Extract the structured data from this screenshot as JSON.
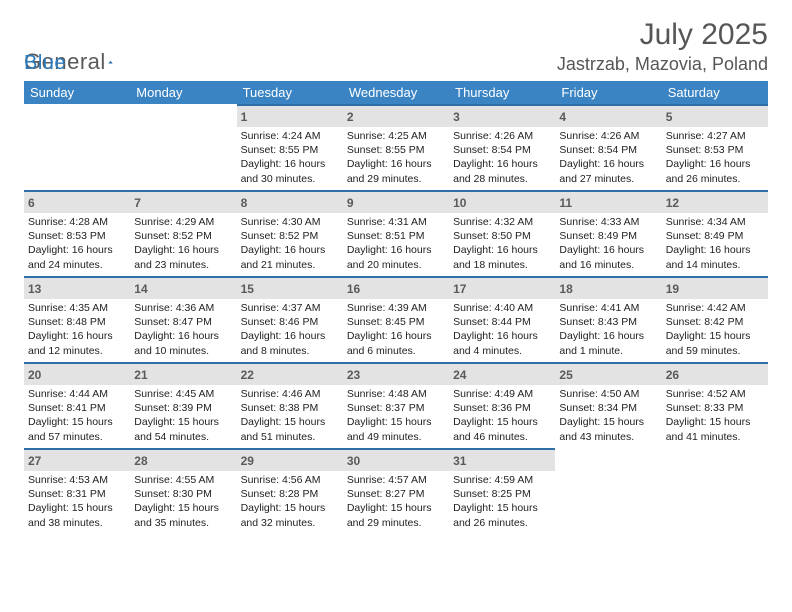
{
  "logo": {
    "text1": "General",
    "text2": "Blue"
  },
  "title": "July 2025",
  "location": "Jastrzab, Mazovia, Poland",
  "colors": {
    "header_bg": "#3b84c4",
    "cell_border": "#2f6fa8",
    "daynum_bg": "#e3e3e3",
    "text_gray": "#565656",
    "logo_blue": "#2b7bbf"
  },
  "dayNames": [
    "Sunday",
    "Monday",
    "Tuesday",
    "Wednesday",
    "Thursday",
    "Friday",
    "Saturday"
  ],
  "weeks": [
    [
      null,
      null,
      {
        "n": "1",
        "sr": "4:24 AM",
        "ss": "8:55 PM",
        "dl": "16 hours and 30 minutes."
      },
      {
        "n": "2",
        "sr": "4:25 AM",
        "ss": "8:55 PM",
        "dl": "16 hours and 29 minutes."
      },
      {
        "n": "3",
        "sr": "4:26 AM",
        "ss": "8:54 PM",
        "dl": "16 hours and 28 minutes."
      },
      {
        "n": "4",
        "sr": "4:26 AM",
        "ss": "8:54 PM",
        "dl": "16 hours and 27 minutes."
      },
      {
        "n": "5",
        "sr": "4:27 AM",
        "ss": "8:53 PM",
        "dl": "16 hours and 26 minutes."
      }
    ],
    [
      {
        "n": "6",
        "sr": "4:28 AM",
        "ss": "8:53 PM",
        "dl": "16 hours and 24 minutes."
      },
      {
        "n": "7",
        "sr": "4:29 AM",
        "ss": "8:52 PM",
        "dl": "16 hours and 23 minutes."
      },
      {
        "n": "8",
        "sr": "4:30 AM",
        "ss": "8:52 PM",
        "dl": "16 hours and 21 minutes."
      },
      {
        "n": "9",
        "sr": "4:31 AM",
        "ss": "8:51 PM",
        "dl": "16 hours and 20 minutes."
      },
      {
        "n": "10",
        "sr": "4:32 AM",
        "ss": "8:50 PM",
        "dl": "16 hours and 18 minutes."
      },
      {
        "n": "11",
        "sr": "4:33 AM",
        "ss": "8:49 PM",
        "dl": "16 hours and 16 minutes."
      },
      {
        "n": "12",
        "sr": "4:34 AM",
        "ss": "8:49 PM",
        "dl": "16 hours and 14 minutes."
      }
    ],
    [
      {
        "n": "13",
        "sr": "4:35 AM",
        "ss": "8:48 PM",
        "dl": "16 hours and 12 minutes."
      },
      {
        "n": "14",
        "sr": "4:36 AM",
        "ss": "8:47 PM",
        "dl": "16 hours and 10 minutes."
      },
      {
        "n": "15",
        "sr": "4:37 AM",
        "ss": "8:46 PM",
        "dl": "16 hours and 8 minutes."
      },
      {
        "n": "16",
        "sr": "4:39 AM",
        "ss": "8:45 PM",
        "dl": "16 hours and 6 minutes."
      },
      {
        "n": "17",
        "sr": "4:40 AM",
        "ss": "8:44 PM",
        "dl": "16 hours and 4 minutes."
      },
      {
        "n": "18",
        "sr": "4:41 AM",
        "ss": "8:43 PM",
        "dl": "16 hours and 1 minute."
      },
      {
        "n": "19",
        "sr": "4:42 AM",
        "ss": "8:42 PM",
        "dl": "15 hours and 59 minutes."
      }
    ],
    [
      {
        "n": "20",
        "sr": "4:44 AM",
        "ss": "8:41 PM",
        "dl": "15 hours and 57 minutes."
      },
      {
        "n": "21",
        "sr": "4:45 AM",
        "ss": "8:39 PM",
        "dl": "15 hours and 54 minutes."
      },
      {
        "n": "22",
        "sr": "4:46 AM",
        "ss": "8:38 PM",
        "dl": "15 hours and 51 minutes."
      },
      {
        "n": "23",
        "sr": "4:48 AM",
        "ss": "8:37 PM",
        "dl": "15 hours and 49 minutes."
      },
      {
        "n": "24",
        "sr": "4:49 AM",
        "ss": "8:36 PM",
        "dl": "15 hours and 46 minutes."
      },
      {
        "n": "25",
        "sr": "4:50 AM",
        "ss": "8:34 PM",
        "dl": "15 hours and 43 minutes."
      },
      {
        "n": "26",
        "sr": "4:52 AM",
        "ss": "8:33 PM",
        "dl": "15 hours and 41 minutes."
      }
    ],
    [
      {
        "n": "27",
        "sr": "4:53 AM",
        "ss": "8:31 PM",
        "dl": "15 hours and 38 minutes."
      },
      {
        "n": "28",
        "sr": "4:55 AM",
        "ss": "8:30 PM",
        "dl": "15 hours and 35 minutes."
      },
      {
        "n": "29",
        "sr": "4:56 AM",
        "ss": "8:28 PM",
        "dl": "15 hours and 32 minutes."
      },
      {
        "n": "30",
        "sr": "4:57 AM",
        "ss": "8:27 PM",
        "dl": "15 hours and 29 minutes."
      },
      {
        "n": "31",
        "sr": "4:59 AM",
        "ss": "8:25 PM",
        "dl": "15 hours and 26 minutes."
      },
      null,
      null
    ]
  ],
  "labels": {
    "sunrise": "Sunrise:",
    "sunset": "Sunset:",
    "daylight": "Daylight:"
  }
}
